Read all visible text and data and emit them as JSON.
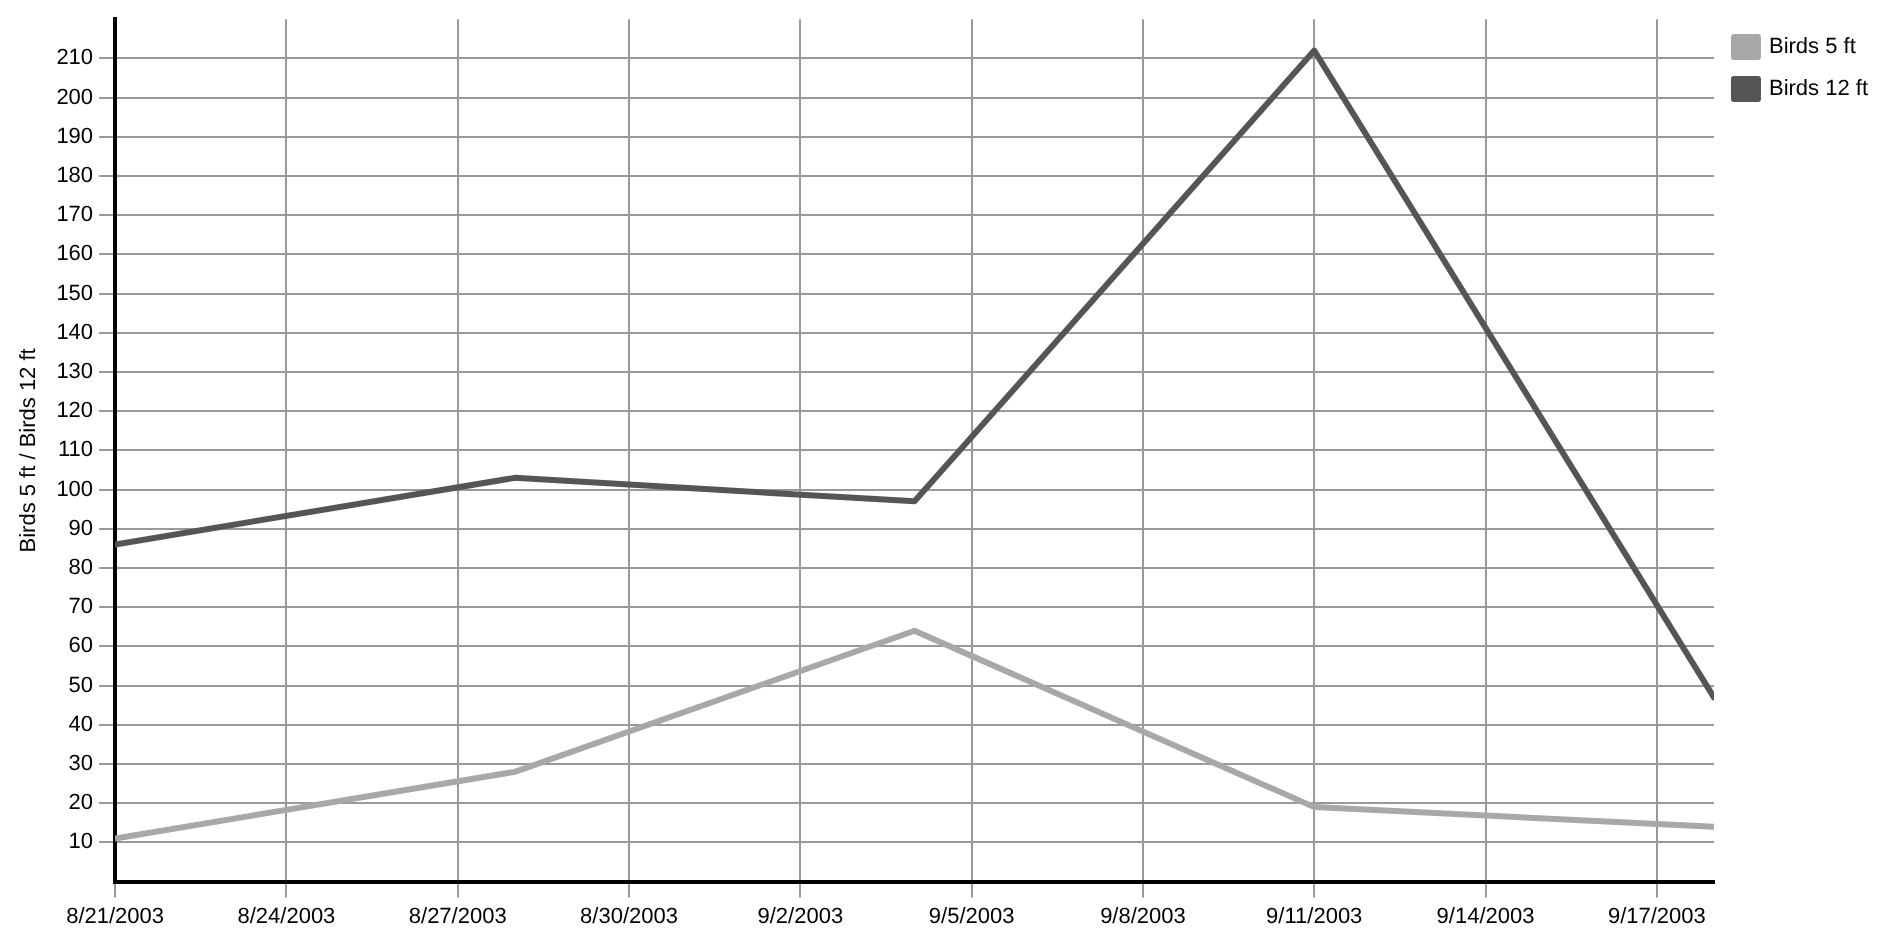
{
  "chart_data": {
    "type": "line",
    "ylabel": "Birds 5 ft / Birds 12 ft",
    "x": [
      "2003-08-21",
      "2003-08-28",
      "2003-09-04",
      "2003-09-11",
      "2003-09-18"
    ],
    "series": [
      {
        "name": "Birds 5 ft",
        "color": "#a8a8a8",
        "values": [
          11,
          28,
          64,
          19,
          14
        ]
      },
      {
        "name": "Birds 12 ft",
        "color": "#555555",
        "values": [
          86,
          103,
          97,
          212,
          47
        ]
      }
    ],
    "xlim": [
      "2003-08-21",
      "2003-09-18"
    ],
    "xticks": [
      {
        "value": "2003-08-21",
        "label": "8/21/2003"
      },
      {
        "value": "2003-08-24",
        "label": "8/24/2003"
      },
      {
        "value": "2003-08-27",
        "label": "8/27/2003"
      },
      {
        "value": "2003-08-30",
        "label": "8/30/2003"
      },
      {
        "value": "2003-09-02",
        "label": "9/2/2003"
      },
      {
        "value": "2003-09-05",
        "label": "9/5/2003"
      },
      {
        "value": "2003-09-08",
        "label": "9/8/2003"
      },
      {
        "value": "2003-09-11",
        "label": "9/11/2003"
      },
      {
        "value": "2003-09-14",
        "label": "9/14/2003"
      },
      {
        "value": "2003-09-17",
        "label": "9/17/2003"
      }
    ],
    "ylim": [
      0,
      220
    ],
    "yticks": [
      10,
      20,
      30,
      40,
      50,
      60,
      70,
      80,
      90,
      100,
      110,
      120,
      130,
      140,
      150,
      160,
      170,
      180,
      190,
      200,
      210
    ],
    "grid": true,
    "legend": "top right",
    "marker": "none",
    "line_style": "solid"
  }
}
